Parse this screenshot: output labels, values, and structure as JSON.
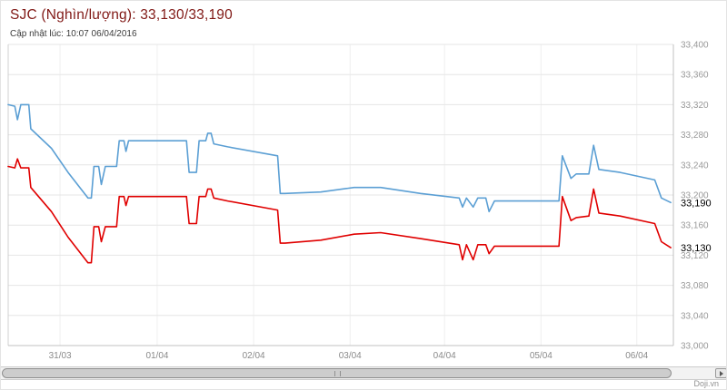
{
  "header": {
    "title": "SJC (Nghìn/lượng): 33,130/33,190",
    "subtitle": "Cập nhật lúc: 10:07 06/04/2016"
  },
  "credits": {
    "label": "Doji.vn"
  },
  "colors": {
    "title": "#801815",
    "sell_line": "#5b9fd4",
    "buy_line": "#e00000",
    "grid": "#e6e6e6",
    "axis_label": "#999999",
    "current_label": "#000000"
  },
  "icons": {
    "scroll_right": "right-triangle"
  },
  "chart_data": {
    "type": "line",
    "title": "SJC (Nghìn/lượng): 33,130/33,190",
    "subtitle": "Cập nhật lúc: 10:07 06/04/2016",
    "xlabel": "",
    "ylabel": "",
    "ylim": [
      33000,
      33400
    ],
    "grid": true,
    "legend": false,
    "y_ticks": [
      {
        "value": 33400,
        "label": "33,400"
      },
      {
        "value": 33360,
        "label": "33,360"
      },
      {
        "value": 33320,
        "label": "33,320"
      },
      {
        "value": 33280,
        "label": "33,280"
      },
      {
        "value": 33240,
        "label": "33,240"
      },
      {
        "value": 33200,
        "label": "33,200"
      },
      {
        "value": 33160,
        "label": "33,160"
      },
      {
        "value": 33120,
        "label": "33,120"
      },
      {
        "value": 33080,
        "label": "33,080"
      },
      {
        "value": 33040,
        "label": "33,040"
      },
      {
        "value": 33000,
        "label": "33,000"
      }
    ],
    "x_ticks": [
      {
        "label": "31/03",
        "pos": 7.8
      },
      {
        "label": "01/04",
        "pos": 22.4
      },
      {
        "label": "02/04",
        "pos": 36.9
      },
      {
        "label": "03/04",
        "pos": 51.4
      },
      {
        "label": "04/04",
        "pos": 65.6
      },
      {
        "label": "05/04",
        "pos": 80.1
      },
      {
        "label": "06/04",
        "pos": 94.5
      }
    ],
    "series": [
      {
        "id": "sell",
        "name": "sell",
        "color": "#5b9fd4",
        "current_value": 33190,
        "current_label": "33,190",
        "points": [
          [
            0,
            33320
          ],
          [
            1.0,
            33318
          ],
          [
            1.4,
            33300
          ],
          [
            1.9,
            33320
          ],
          [
            3.1,
            33320
          ],
          [
            3.4,
            33288
          ],
          [
            6.5,
            33262
          ],
          [
            9.0,
            33230
          ],
          [
            12.0,
            33196
          ],
          [
            12.5,
            33196
          ],
          [
            12.9,
            33238
          ],
          [
            13.6,
            33238
          ],
          [
            14.0,
            33214
          ],
          [
            14.6,
            33238
          ],
          [
            16.3,
            33238
          ],
          [
            16.7,
            33272
          ],
          [
            17.4,
            33272
          ],
          [
            17.7,
            33258
          ],
          [
            18.1,
            33272
          ],
          [
            26.8,
            33272
          ],
          [
            27.2,
            33230
          ],
          [
            28.3,
            33230
          ],
          [
            28.7,
            33272
          ],
          [
            29.7,
            33272
          ],
          [
            30.0,
            33282
          ],
          [
            30.5,
            33282
          ],
          [
            30.9,
            33268
          ],
          [
            33.0,
            33264
          ],
          [
            40.5,
            33252
          ],
          [
            40.9,
            33202
          ],
          [
            41.6,
            33202
          ],
          [
            47.0,
            33204
          ],
          [
            52.0,
            33210
          ],
          [
            56.0,
            33210
          ],
          [
            62.0,
            33202
          ],
          [
            67.8,
            33196
          ],
          [
            68.3,
            33184
          ],
          [
            68.9,
            33196
          ],
          [
            69.9,
            33184
          ],
          [
            70.6,
            33196
          ],
          [
            71.8,
            33196
          ],
          [
            72.3,
            33178
          ],
          [
            73.1,
            33192
          ],
          [
            82.8,
            33192
          ],
          [
            83.3,
            33252
          ],
          [
            84.6,
            33222
          ],
          [
            85.4,
            33228
          ],
          [
            87.3,
            33228
          ],
          [
            88.0,
            33266
          ],
          [
            88.8,
            33234
          ],
          [
            92.0,
            33230
          ],
          [
            97.2,
            33220
          ],
          [
            98.2,
            33196
          ],
          [
            99.6,
            33190
          ]
        ]
      },
      {
        "id": "buy",
        "name": "buy",
        "color": "#e00000",
        "current_value": 33130,
        "current_label": "33,130",
        "points": [
          [
            0,
            33238
          ],
          [
            1.0,
            33236
          ],
          [
            1.4,
            33248
          ],
          [
            1.9,
            33236
          ],
          [
            3.1,
            33236
          ],
          [
            3.4,
            33210
          ],
          [
            6.5,
            33178
          ],
          [
            9.0,
            33144
          ],
          [
            12.0,
            33110
          ],
          [
            12.5,
            33110
          ],
          [
            12.9,
            33158
          ],
          [
            13.6,
            33158
          ],
          [
            14.0,
            33138
          ],
          [
            14.6,
            33158
          ],
          [
            16.3,
            33158
          ],
          [
            16.7,
            33198
          ],
          [
            17.4,
            33198
          ],
          [
            17.7,
            33186
          ],
          [
            18.1,
            33198
          ],
          [
            26.8,
            33198
          ],
          [
            27.2,
            33162
          ],
          [
            28.3,
            33162
          ],
          [
            28.7,
            33198
          ],
          [
            29.7,
            33198
          ],
          [
            30.0,
            33208
          ],
          [
            30.5,
            33208
          ],
          [
            30.9,
            33196
          ],
          [
            33.0,
            33192
          ],
          [
            40.5,
            33180
          ],
          [
            40.9,
            33136
          ],
          [
            41.6,
            33136
          ],
          [
            47.0,
            33140
          ],
          [
            52.0,
            33148
          ],
          [
            56.0,
            33150
          ],
          [
            62.0,
            33142
          ],
          [
            67.8,
            33134
          ],
          [
            68.3,
            33114
          ],
          [
            68.9,
            33134
          ],
          [
            69.9,
            33114
          ],
          [
            70.6,
            33134
          ],
          [
            71.8,
            33134
          ],
          [
            72.3,
            33122
          ],
          [
            73.1,
            33132
          ],
          [
            82.8,
            33132
          ],
          [
            83.3,
            33198
          ],
          [
            84.6,
            33166
          ],
          [
            85.4,
            33170
          ],
          [
            87.3,
            33172
          ],
          [
            88.0,
            33208
          ],
          [
            88.8,
            33176
          ],
          [
            92.0,
            33172
          ],
          [
            97.2,
            33162
          ],
          [
            98.2,
            33138
          ],
          [
            99.6,
            33130
          ]
        ]
      }
    ]
  }
}
